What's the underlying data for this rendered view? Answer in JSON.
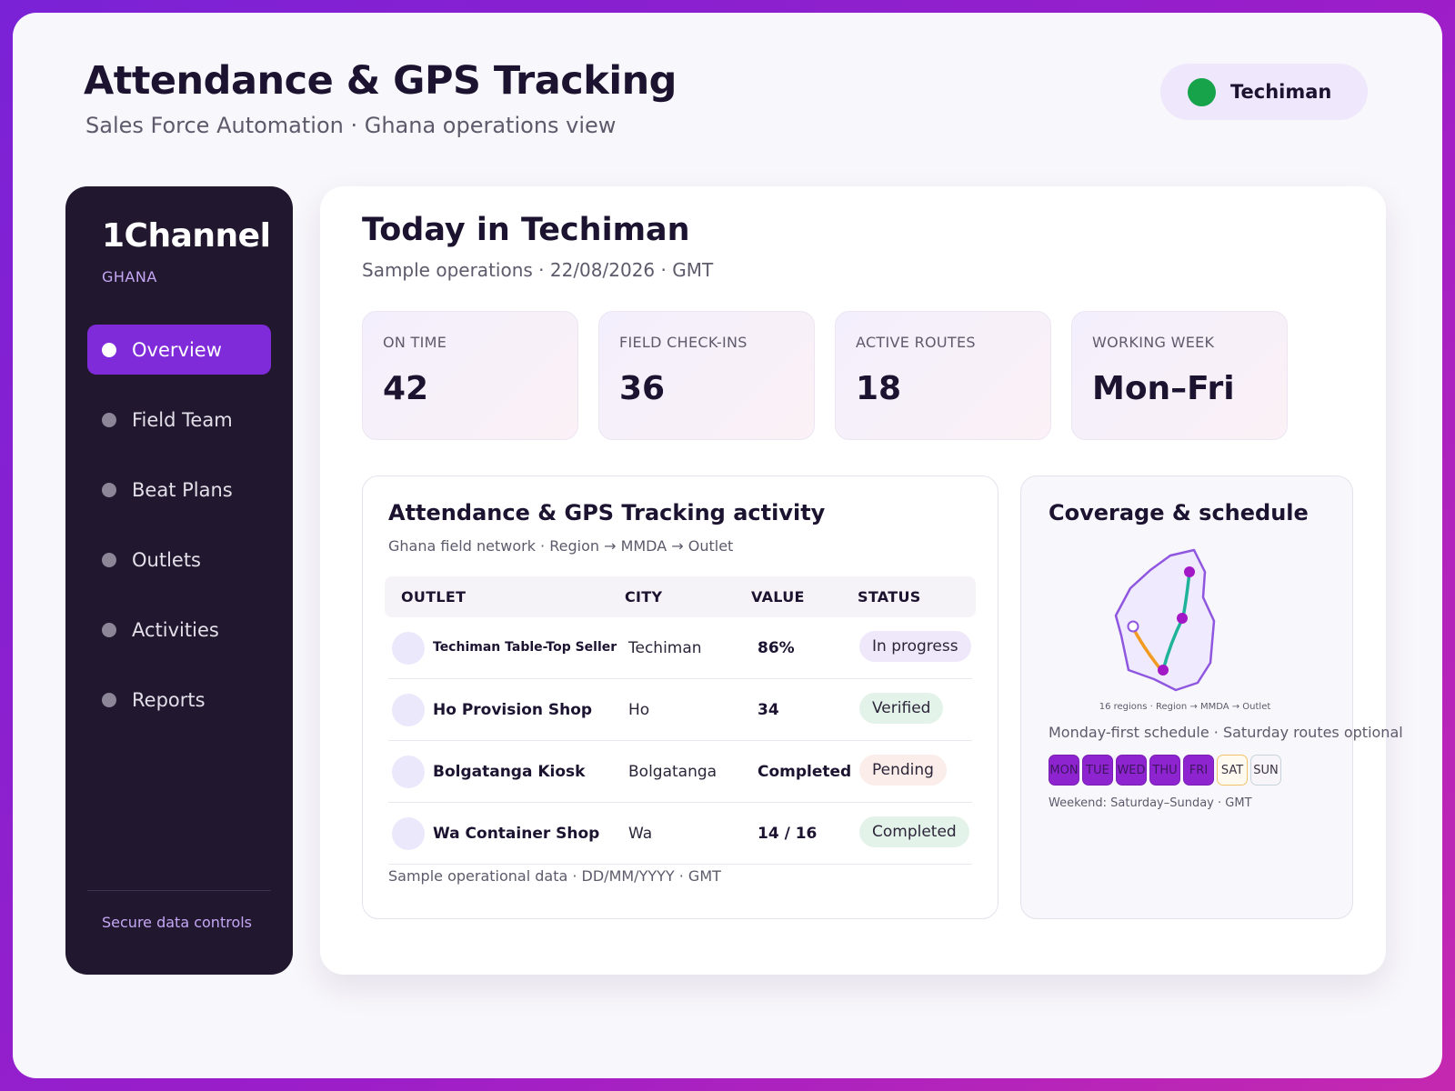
{
  "header": {
    "title": "Attendance & GPS Tracking",
    "subtitle": "Sales Force Automation · Ghana operations view",
    "location": "Techiman",
    "location_status_color": "#17a34a"
  },
  "sidebar": {
    "brand": "1Channel",
    "region": "GHANA",
    "items": [
      {
        "label": "Overview",
        "active": true
      },
      {
        "label": "Field Team"
      },
      {
        "label": "Beat Plans"
      },
      {
        "label": "Outlets"
      },
      {
        "label": "Activities"
      },
      {
        "label": "Reports"
      }
    ],
    "footer": "Secure data controls"
  },
  "main": {
    "title": "Today in Techiman",
    "subtitle": "Sample operations · 22/08/2026 · GMT",
    "stats": [
      {
        "label": "ON TIME",
        "value": "42"
      },
      {
        "label": "FIELD CHECK-INS",
        "value": "36"
      },
      {
        "label": "ACTIVE ROUTES",
        "value": "18"
      },
      {
        "label": "WORKING WEEK",
        "value": "Mon–Fri"
      }
    ]
  },
  "activity": {
    "title": "Attendance & GPS Tracking activity",
    "subtitle": "Ghana field network · Region → MMDA → Outlet",
    "columns": [
      "OUTLET",
      "CITY",
      "VALUE",
      "STATUS"
    ],
    "rows": [
      {
        "outlet": "Techiman Table-Top Seller",
        "city": "Techiman",
        "value": "86%",
        "status": "In progress"
      },
      {
        "outlet": "Ho Provision Shop",
        "city": "Ho",
        "value": "34",
        "status": "Verified"
      },
      {
        "outlet": "Bolgatanga Kiosk",
        "city": "Bolgatanga",
        "value": "Completed",
        "status": "Pending"
      },
      {
        "outlet": "Wa Container Shop",
        "city": "Wa",
        "value": "14 / 16",
        "status": "Completed"
      }
    ],
    "footnote": "Sample operational data · DD/MM/YYYY · GMT"
  },
  "coverage": {
    "title": "Coverage & schedule",
    "map_caption": "16 regions · Region → MMDA → Outlet",
    "schedule_note": "Monday-first schedule · Saturday routes optional",
    "days": [
      "MON",
      "TUE",
      "WED",
      "THU",
      "FRI",
      "SAT",
      "SUN"
    ],
    "weekend_note": "Weekend: Saturday–Sunday · GMT",
    "colors": {
      "route_primary": "#1fb39a",
      "route_secondary": "#f29a1f",
      "pin": "#a218c6",
      "outline": "#8f56e0",
      "fill": "#efeafd"
    }
  }
}
